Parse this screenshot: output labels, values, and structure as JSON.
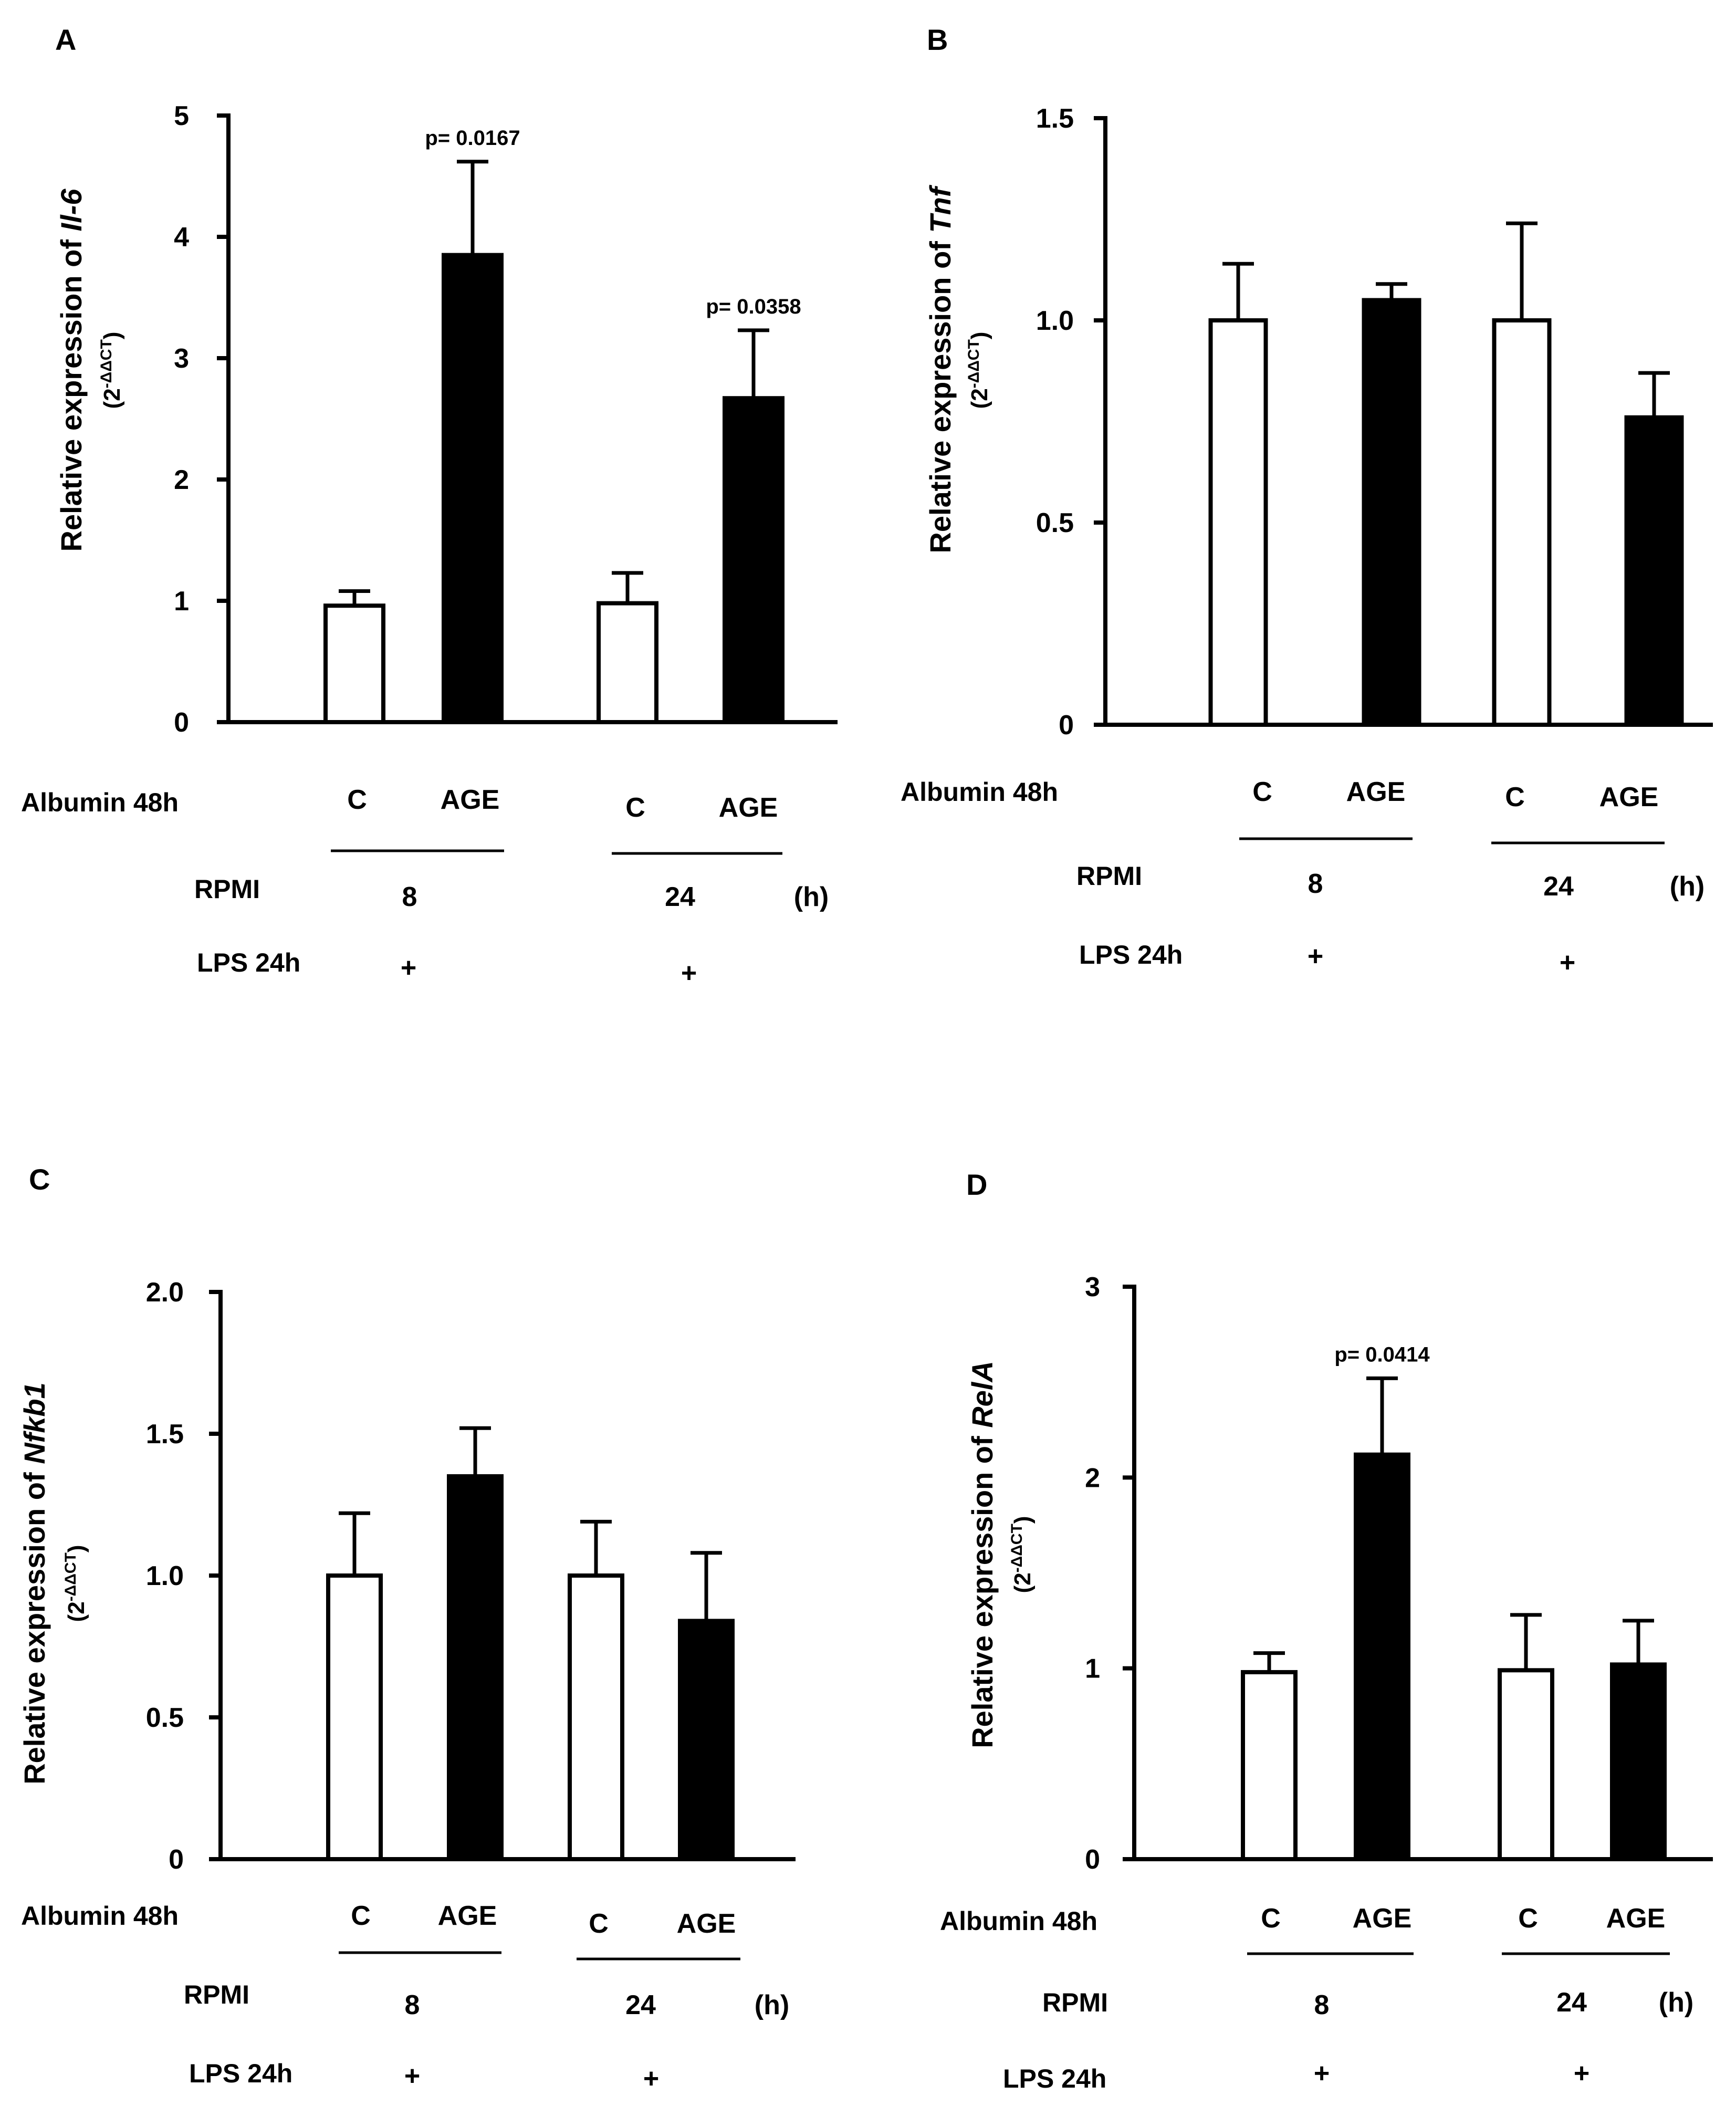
{
  "chart_data": [
    {
      "type": "bar",
      "panel": "A",
      "ylabel_prefix": "Relative expression of ",
      "ylabel_gene": "Il-6",
      "ylabel_unit_base": "(2",
      "ylabel_unit_exp": "-ΔΔCT",
      "ylabel_unit_end": ")",
      "ylim": [
        0,
        5
      ],
      "yticks": [
        0,
        1,
        2,
        3,
        4,
        5
      ],
      "ytick_labels": [
        "0",
        "1",
        "2",
        "3",
        "4",
        "5"
      ],
      "bars": [
        {
          "label": "C",
          "value": 0.96,
          "error": 0.12,
          "fill": "#ffffff",
          "p": ""
        },
        {
          "label": "AGE",
          "value": 3.85,
          "error": 0.77,
          "fill": "#000000",
          "p": "p= 0.0167"
        },
        {
          "label": "C",
          "value": 0.98,
          "error": 0.25,
          "fill": "#ffffff",
          "p": ""
        },
        {
          "label": "AGE",
          "value": 2.67,
          "error": 0.56,
          "fill": "#000000",
          "p": "p= 0.0358"
        }
      ],
      "row_labels": {
        "albumin": "Albumin 48h",
        "rpmi": "RPMI",
        "lps": "LPS 24h"
      },
      "groups": [
        {
          "rpmi": "8",
          "lps": "+"
        },
        {
          "rpmi": "24",
          "lps": "+"
        }
      ],
      "unit": "(h)"
    },
    {
      "type": "bar",
      "panel": "B",
      "ylabel_prefix": "Relative expression of ",
      "ylabel_gene": "Tnf",
      "ylabel_unit_base": "(2",
      "ylabel_unit_exp": "-ΔΔCT",
      "ylabel_unit_end": ")",
      "ylim": [
        0,
        1.5
      ],
      "yticks": [
        0,
        0.5,
        1.0,
        1.5
      ],
      "ytick_labels": [
        "0",
        "0.5",
        "1.0",
        "1.5"
      ],
      "bars": [
        {
          "label": "C",
          "value": 1.0,
          "error": 0.14,
          "fill": "#ffffff",
          "p": ""
        },
        {
          "label": "AGE",
          "value": 1.05,
          "error": 0.04,
          "fill": "#000000",
          "p": ""
        },
        {
          "label": "C",
          "value": 1.0,
          "error": 0.24,
          "fill": "#ffffff",
          "p": ""
        },
        {
          "label": "AGE",
          "value": 0.76,
          "error": 0.11,
          "fill": "#000000",
          "p": ""
        }
      ],
      "row_labels": {
        "albumin": "Albumin 48h",
        "rpmi": "RPMI",
        "lps": "LPS 24h"
      },
      "groups": [
        {
          "rpmi": "8",
          "lps": "+"
        },
        {
          "rpmi": "24",
          "lps": "+"
        }
      ],
      "unit": "(h)"
    },
    {
      "type": "bar",
      "panel": "C",
      "ylabel_prefix": "Relative expression of ",
      "ylabel_gene": "Nfkb1",
      "ylabel_unit_base": "(2",
      "ylabel_unit_exp": "-ΔΔCT",
      "ylabel_unit_end": ")",
      "ylim": [
        0,
        2.0
      ],
      "yticks": [
        0,
        0.5,
        1.0,
        1.5,
        2.0
      ],
      "ytick_labels": [
        "0",
        "0.5",
        "1.0",
        "1.5",
        "2.0"
      ],
      "bars": [
        {
          "label": "C",
          "value": 1.0,
          "error": 0.22,
          "fill": "#ffffff",
          "p": ""
        },
        {
          "label": "AGE",
          "value": 1.35,
          "error": 0.17,
          "fill": "#000000",
          "p": ""
        },
        {
          "label": "C",
          "value": 1.0,
          "error": 0.19,
          "fill": "#ffffff",
          "p": ""
        },
        {
          "label": "AGE",
          "value": 0.84,
          "error": 0.24,
          "fill": "#000000",
          "p": ""
        }
      ],
      "row_labels": {
        "albumin": "Albumin 48h",
        "rpmi": "RPMI",
        "lps": "LPS 24h"
      },
      "groups": [
        {
          "rpmi": "8",
          "lps": "+"
        },
        {
          "rpmi": "24",
          "lps": "+"
        }
      ],
      "unit": "(h)"
    },
    {
      "type": "bar",
      "panel": "D",
      "ylabel_prefix": "Relative expression of ",
      "ylabel_gene": "RelA",
      "ylabel_unit_base": "(2",
      "ylabel_unit_exp": "-ΔΔCT",
      "ylabel_unit_end": ")",
      "ylim": [
        0,
        3
      ],
      "yticks": [
        0,
        1,
        2,
        3
      ],
      "ytick_labels": [
        "0",
        "1",
        "2",
        "3"
      ],
      "bars": [
        {
          "label": "C",
          "value": 0.98,
          "error": 0.1,
          "fill": "#ffffff",
          "p": ""
        },
        {
          "label": "AGE",
          "value": 2.12,
          "error": 0.4,
          "fill": "#000000",
          "p": "p= 0.0414"
        },
        {
          "label": "C",
          "value": 0.99,
          "error": 0.29,
          "fill": "#ffffff",
          "p": ""
        },
        {
          "label": "AGE",
          "value": 1.02,
          "error": 0.23,
          "fill": "#000000",
          "p": ""
        }
      ],
      "row_labels": {
        "albumin": "Albumin 48h",
        "rpmi": "RPMI",
        "lps": "LPS 24h"
      },
      "groups": [
        {
          "rpmi": "8",
          "lps": "+"
        },
        {
          "rpmi": "24",
          "lps": "+"
        }
      ],
      "unit": "(h)"
    }
  ]
}
